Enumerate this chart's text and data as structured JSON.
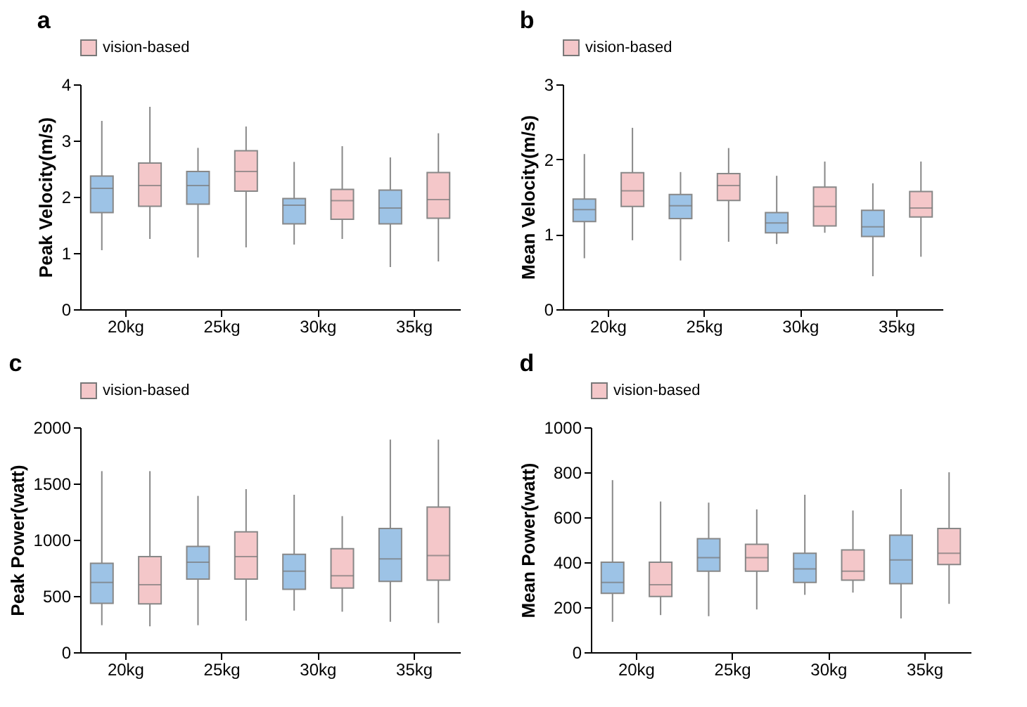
{
  "chart_data": [
    {
      "type": "box",
      "title": "a",
      "ylabel": "Peak Velocity(m/s)",
      "categories": [
        "20kg",
        "25kg",
        "30kg",
        "35kg"
      ],
      "ylim": [
        0,
        4
      ],
      "yticks": [
        0,
        1,
        2,
        3,
        4
      ],
      "legend": "top",
      "series": [
        {
          "color": "#9dc3e6",
          "boxes": [
            {
              "low": 1.05,
              "q1": 1.72,
              "median": 2.15,
              "q3": 2.37,
              "high": 3.35
            },
            {
              "low": 0.92,
              "q1": 1.87,
              "median": 2.2,
              "q3": 2.45,
              "high": 2.87
            },
            {
              "low": 1.15,
              "q1": 1.52,
              "median": 1.85,
              "q3": 1.97,
              "high": 2.62
            },
            {
              "low": 0.75,
              "q1": 1.52,
              "median": 1.8,
              "q3": 2.12,
              "high": 2.7
            }
          ]
        },
        {
          "name": "vision-based",
          "color": "#f4c7c9",
          "boxes": [
            {
              "low": 1.25,
              "q1": 1.83,
              "median": 2.2,
              "q3": 2.6,
              "high": 3.6
            },
            {
              "low": 1.1,
              "q1": 2.1,
              "median": 2.45,
              "q3": 2.82,
              "high": 3.25
            },
            {
              "low": 1.25,
              "q1": 1.6,
              "median": 1.93,
              "q3": 2.13,
              "high": 2.9
            },
            {
              "low": 0.85,
              "q1": 1.62,
              "median": 1.95,
              "q3": 2.43,
              "high": 3.13
            }
          ]
        }
      ]
    },
    {
      "type": "box",
      "title": "b",
      "ylabel": "Mean Velocity(m/s)",
      "categories": [
        "20kg",
        "25kg",
        "30kg",
        "35kg"
      ],
      "ylim": [
        0,
        3
      ],
      "yticks": [
        0,
        1,
        2,
        3
      ],
      "legend": "top",
      "series": [
        {
          "color": "#9dc3e6",
          "boxes": [
            {
              "low": 0.68,
              "q1": 1.17,
              "median": 1.33,
              "q3": 1.47,
              "high": 2.07
            },
            {
              "low": 0.65,
              "q1": 1.21,
              "median": 1.38,
              "q3": 1.53,
              "high": 1.83
            },
            {
              "low": 0.87,
              "q1": 1.02,
              "median": 1.15,
              "q3": 1.29,
              "high": 1.78
            },
            {
              "low": 0.44,
              "q1": 0.97,
              "median": 1.1,
              "q3": 1.32,
              "high": 1.68
            }
          ]
        },
        {
          "name": "vision-based",
          "color": "#f4c7c9",
          "boxes": [
            {
              "low": 0.92,
              "q1": 1.37,
              "median": 1.58,
              "q3": 1.82,
              "high": 2.42
            },
            {
              "low": 0.9,
              "q1": 1.45,
              "median": 1.65,
              "q3": 1.81,
              "high": 2.15
            },
            {
              "low": 1.02,
              "q1": 1.11,
              "median": 1.37,
              "q3": 1.63,
              "high": 1.97
            },
            {
              "low": 0.7,
              "q1": 1.23,
              "median": 1.35,
              "q3": 1.57,
              "high": 1.97
            }
          ]
        }
      ]
    },
    {
      "type": "box",
      "title": "c",
      "ylabel": "Peak Power(watt)",
      "categories": [
        "20kg",
        "25kg",
        "30kg",
        "35kg"
      ],
      "ylim": [
        0,
        2000
      ],
      "yticks": [
        0,
        500,
        1000,
        1500,
        2000
      ],
      "legend": "top",
      "series": [
        {
          "color": "#9dc3e6",
          "boxes": [
            {
              "low": 240,
              "q1": 435,
              "median": 620,
              "q3": 790,
              "high": 1610
            },
            {
              "low": 240,
              "q1": 650,
              "median": 800,
              "q3": 940,
              "high": 1390
            },
            {
              "low": 370,
              "q1": 560,
              "median": 720,
              "q3": 870,
              "high": 1400
            },
            {
              "low": 270,
              "q1": 630,
              "median": 830,
              "q3": 1100,
              "high": 1890
            }
          ]
        },
        {
          "name": "vision-based",
          "color": "#f4c7c9",
          "boxes": [
            {
              "low": 230,
              "q1": 430,
              "median": 600,
              "q3": 850,
              "high": 1610
            },
            {
              "low": 280,
              "q1": 650,
              "median": 850,
              "q3": 1070,
              "high": 1450
            },
            {
              "low": 360,
              "q1": 570,
              "median": 680,
              "q3": 920,
              "high": 1210
            },
            {
              "low": 260,
              "q1": 640,
              "median": 860,
              "q3": 1290,
              "high": 1890
            }
          ]
        }
      ]
    },
    {
      "type": "box",
      "title": "d",
      "ylabel": "Mean Power(watt)",
      "categories": [
        "20kg",
        "25kg",
        "30kg",
        "35kg"
      ],
      "ylim": [
        0,
        1000
      ],
      "yticks": [
        0,
        200,
        400,
        600,
        800,
        1000
      ],
      "legend": "top",
      "series": [
        {
          "color": "#9dc3e6",
          "boxes": [
            {
              "low": 135,
              "q1": 262,
              "median": 310,
              "q3": 400,
              "high": 765
            },
            {
              "low": 160,
              "q1": 360,
              "median": 420,
              "q3": 505,
              "high": 665
            },
            {
              "low": 255,
              "q1": 310,
              "median": 370,
              "q3": 440,
              "high": 700
            },
            {
              "low": 150,
              "q1": 305,
              "median": 410,
              "q3": 520,
              "high": 725
            }
          ]
        },
        {
          "name": "vision-based",
          "color": "#f4c7c9",
          "boxes": [
            {
              "low": 165,
              "q1": 248,
              "median": 300,
              "q3": 400,
              "high": 670
            },
            {
              "low": 190,
              "q1": 360,
              "median": 420,
              "q3": 480,
              "high": 635
            },
            {
              "low": 265,
              "q1": 320,
              "median": 360,
              "q3": 455,
              "high": 630
            },
            {
              "low": 215,
              "q1": 390,
              "median": 440,
              "q3": 550,
              "high": 800
            }
          ]
        }
      ]
    }
  ]
}
